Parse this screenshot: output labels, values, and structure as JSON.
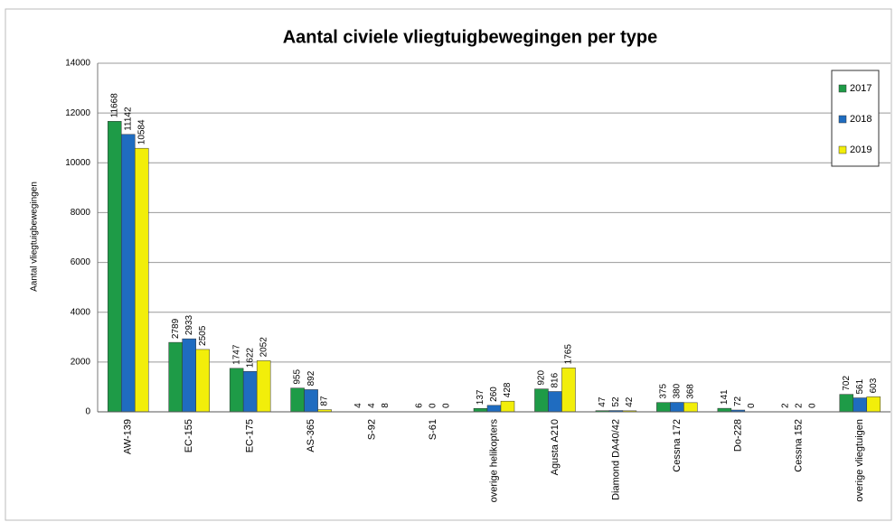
{
  "chart_data": {
    "type": "bar",
    "title": "Aantal civiele vliegtuigbewegingen per type",
    "y_label": "Aantal vliegtuigbewegingen",
    "categories": [
      "AW-139",
      "EC-155",
      "EC-175",
      "AS-365",
      "S-92",
      "S-61",
      "overige helikopters",
      "Agusta A210",
      "Diamond DA40/42",
      "Cessna 172",
      "Do-228",
      "Cessna 152",
      "overige vliegtuigen"
    ],
    "series": [
      {
        "name": "2017",
        "color": "#1e9b47",
        "values": [
          11668,
          2789,
          1747,
          955,
          4,
          6,
          137,
          920,
          47,
          375,
          141,
          2,
          702
        ]
      },
      {
        "name": "2018",
        "color": "#1f6cc0",
        "values": [
          11142,
          2933,
          1622,
          892,
          4,
          0,
          260,
          816,
          52,
          380,
          72,
          2,
          561
        ]
      },
      {
        "name": "2019",
        "color": "#f2ee0a",
        "values": [
          10584,
          2505,
          2052,
          87,
          8,
          0,
          428,
          1765,
          42,
          368,
          0,
          0,
          603
        ]
      }
    ],
    "ylim": [
      0,
      14000
    ],
    "yticks": [
      0,
      2000,
      4000,
      6000,
      8000,
      10000,
      12000,
      14000
    ],
    "grid": true,
    "legend": "upper right"
  }
}
